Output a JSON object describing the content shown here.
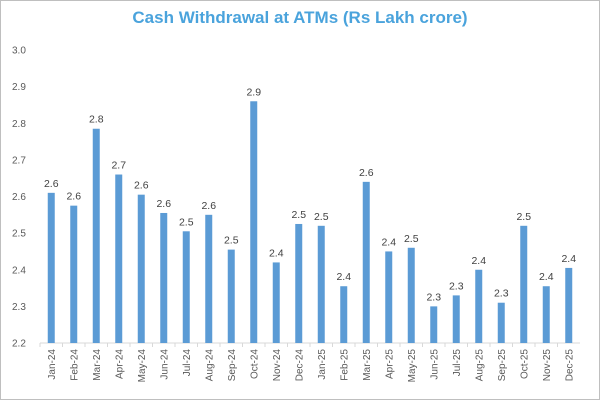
{
  "chart_data": {
    "type": "bar",
    "title": "Cash Withdrawal at ATMs (Rs Lakh crore)",
    "xlabel": "",
    "ylabel": "",
    "ylim": [
      2.2,
      3.0
    ],
    "ytick_labels": [
      "2.2",
      "2.3",
      "2.4",
      "2.5",
      "2.6",
      "2.7",
      "2.8",
      "2.9",
      "3.0"
    ],
    "categories": [
      "Jan-24",
      "Feb-24",
      "Mar-24",
      "Apr-24",
      "May-24",
      "Jun-24",
      "Jul-24",
      "Aug-24",
      "Sep-24",
      "Oct-24",
      "Nov-24",
      "Dec-24",
      "Jan-25",
      "Feb-25",
      "Mar-25",
      "Apr-25",
      "May-25",
      "Jun-25",
      "Jul-25",
      "Aug-25",
      "Sep-25",
      "Oct-25",
      "Nov-25",
      "Dec-25"
    ],
    "values": [
      2.61,
      2.575,
      2.785,
      2.66,
      2.605,
      2.555,
      2.505,
      2.55,
      2.455,
      2.86,
      2.42,
      2.525,
      2.52,
      2.355,
      2.64,
      2.45,
      2.46,
      2.3,
      2.33,
      2.4,
      2.31,
      2.52,
      2.355,
      2.405
    ],
    "data_labels": [
      "2.6",
      "2.6",
      "2.8",
      "2.7",
      "2.6",
      "2.6",
      "2.5",
      "2.6",
      "2.5",
      "2.9",
      "2.4",
      "2.5",
      "2.5",
      "2.4",
      "2.6",
      "2.4",
      "2.5",
      "2.3",
      "2.3",
      "2.4",
      "2.3",
      "2.5",
      "2.4",
      "2.4"
    ],
    "bar_color": "#5b9bd5",
    "grid": false,
    "legend": "none"
  }
}
